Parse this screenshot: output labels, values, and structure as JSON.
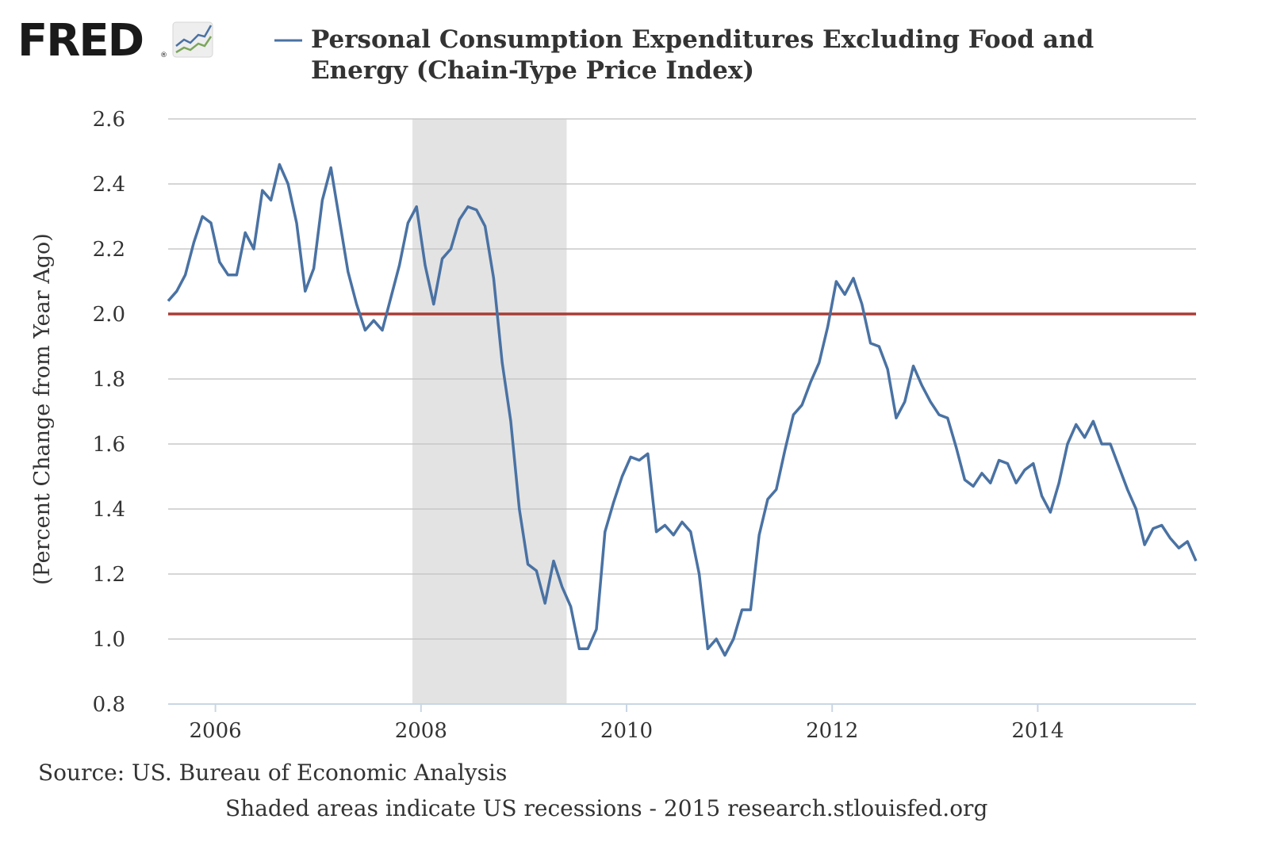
{
  "brand": {
    "name": "FRED",
    "mark": "®"
  },
  "colors": {
    "series": "#4a72a3",
    "threshold": "#a83d36",
    "recession": "#e3e3e3",
    "grid": "#c8c8c8",
    "axis": "#c9d6e3",
    "text": "#333333"
  },
  "chart_data": {
    "type": "line",
    "title_line1": "Personal Consumption Expenditures Excluding Food and",
    "title_line2": "Energy (Chain-Type Price Index)",
    "ylabel": "(Percent Change from Year Ago)",
    "xlabel": "",
    "ylim": [
      0.8,
      2.6
    ],
    "xlim": [
      2005.54,
      2015.54
    ],
    "yticks": [
      0.8,
      1.0,
      1.2,
      1.4,
      1.6,
      1.8,
      2.0,
      2.2,
      2.4,
      2.6
    ],
    "ytick_labels": [
      "0.8",
      "1.0",
      "1.2",
      "1.4",
      "1.6",
      "1.8",
      "2.0",
      "2.2",
      "2.4",
      "2.6"
    ],
    "xticks": [
      2006,
      2008,
      2010,
      2012,
      2014
    ],
    "xtick_labels": [
      "2006",
      "2008",
      "2010",
      "2012",
      "2014"
    ],
    "grid": true,
    "reference_line": {
      "y": 2.0,
      "label": "2.0"
    },
    "recession": {
      "start": 2007.917,
      "end": 2009.417
    },
    "series": [
      {
        "name": "PCE Excluding Food and Energy",
        "start": 2005.54,
        "step": 0.08333,
        "values": [
          2.04,
          2.07,
          2.12,
          2.22,
          2.3,
          2.28,
          2.16,
          2.12,
          2.12,
          2.25,
          2.2,
          2.38,
          2.35,
          2.46,
          2.4,
          2.28,
          2.07,
          2.14,
          2.35,
          2.45,
          2.29,
          2.13,
          2.03,
          1.95,
          1.98,
          1.95,
          2.05,
          2.15,
          2.28,
          2.33,
          2.15,
          2.03,
          2.17,
          2.2,
          2.29,
          2.33,
          2.32,
          2.27,
          2.11,
          1.85,
          1.67,
          1.4,
          1.23,
          1.21,
          1.11,
          1.24,
          1.16,
          1.1,
          0.97,
          0.97,
          1.03,
          1.33,
          1.42,
          1.5,
          1.56,
          1.55,
          1.57,
          1.33,
          1.35,
          1.32,
          1.36,
          1.33,
          1.2,
          0.97,
          1.0,
          0.95,
          1.0,
          1.09,
          1.09,
          1.32,
          1.43,
          1.46,
          1.58,
          1.69,
          1.72,
          1.79,
          1.85,
          1.96,
          2.1,
          2.06,
          2.11,
          2.03,
          1.91,
          1.9,
          1.83,
          1.68,
          1.73,
          1.84,
          1.78,
          1.73,
          1.69,
          1.68,
          1.59,
          1.49,
          1.47,
          1.51,
          1.48,
          1.55,
          1.54,
          1.48,
          1.52,
          1.54,
          1.44,
          1.39,
          1.48,
          1.6,
          1.66,
          1.62,
          1.67,
          1.6,
          1.6,
          1.53,
          1.46,
          1.4,
          1.29,
          1.34,
          1.35,
          1.31,
          1.28,
          1.3,
          1.24
        ]
      }
    ]
  },
  "footer": {
    "source": "Source: US. Bureau of Economic Analysis",
    "note": "Shaded areas indicate US recessions - 2015 research.stlouisfed.org"
  }
}
